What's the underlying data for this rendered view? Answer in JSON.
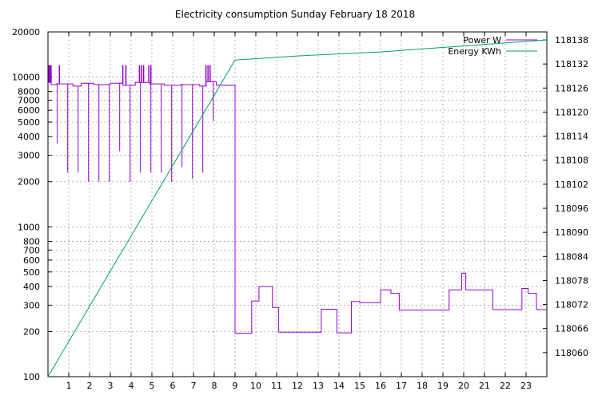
{
  "chart_data": {
    "type": "line",
    "title": "Electricity consumption Sunday February 18 2018",
    "xlabel": "",
    "ylabel": "",
    "grid": true,
    "legend_position": "top-right",
    "xlim": [
      0,
      24
    ],
    "x_ticks": [
      1,
      2,
      3,
      4,
      5,
      6,
      7,
      8,
      9,
      10,
      11,
      12,
      13,
      14,
      15,
      16,
      17,
      18,
      19,
      20,
      21,
      22,
      23
    ],
    "y_left": {
      "scale": "log",
      "lim": [
        100,
        20000
      ],
      "ticks": [
        100,
        200,
        300,
        400,
        500,
        600,
        700,
        800,
        1000,
        2000,
        3000,
        4000,
        5000,
        6000,
        7000,
        8000,
        10000,
        20000
      ]
    },
    "y_right": {
      "scale": "linear",
      "lim": [
        118054,
        118140
      ],
      "ticks": [
        118060,
        118066,
        118072,
        118078,
        118084,
        118090,
        118096,
        118102,
        118108,
        118114,
        118120,
        118126,
        118132,
        118138
      ]
    },
    "series": [
      {
        "name": "Power W",
        "axis": "left",
        "color": "#9400d3",
        "base_segments": [
          [
            0,
            0.15,
            9200
          ],
          [
            0.15,
            0.4,
            8900
          ],
          [
            0.4,
            0.55,
            9000
          ],
          [
            0.55,
            1.2,
            9000
          ],
          [
            1.2,
            1.6,
            8700
          ],
          [
            1.6,
            2.2,
            9100
          ],
          [
            2.2,
            3.0,
            8900
          ],
          [
            3.0,
            3.6,
            9100
          ],
          [
            3.6,
            4.2,
            8800
          ],
          [
            4.2,
            4.9,
            9200
          ],
          [
            4.9,
            5.6,
            9000
          ],
          [
            5.6,
            6.4,
            8800
          ],
          [
            6.4,
            7.3,
            8900
          ],
          [
            7.3,
            7.6,
            8700
          ],
          [
            7.6,
            8.1,
            9300
          ],
          [
            8.1,
            9.0,
            8800
          ],
          [
            9.0,
            9.8,
            195
          ],
          [
            9.8,
            10.15,
            320
          ],
          [
            10.15,
            10.8,
            400
          ],
          [
            10.8,
            11.1,
            290
          ],
          [
            11.1,
            13.15,
            198
          ],
          [
            13.15,
            13.9,
            282
          ],
          [
            13.9,
            14.6,
            196
          ],
          [
            14.6,
            15.0,
            318
          ],
          [
            15.0,
            16.0,
            312
          ],
          [
            16.0,
            16.5,
            380
          ],
          [
            16.5,
            16.9,
            360
          ],
          [
            16.9,
            19.3,
            278
          ],
          [
            19.3,
            19.9,
            380
          ],
          [
            19.9,
            20.1,
            490
          ],
          [
            20.1,
            21.4,
            380
          ],
          [
            21.4,
            22.8,
            280
          ],
          [
            22.8,
            23.1,
            388
          ],
          [
            23.1,
            23.5,
            360
          ],
          [
            23.5,
            24,
            280
          ]
        ],
        "dips": [
          [
            0.45,
            3600
          ],
          [
            0.95,
            2300
          ],
          [
            1.45,
            2300
          ],
          [
            1.95,
            2000
          ],
          [
            2.45,
            2000
          ],
          [
            2.95,
            2000
          ],
          [
            3.45,
            3200
          ],
          [
            3.95,
            2000
          ],
          [
            4.45,
            2300
          ],
          [
            4.95,
            2300
          ],
          [
            5.45,
            2300
          ],
          [
            5.95,
            2000
          ],
          [
            6.45,
            2500
          ],
          [
            6.95,
            2100
          ],
          [
            7.45,
            2300
          ],
          [
            7.95,
            5100
          ],
          [
            9.0,
            2500
          ]
        ],
        "spikes": [
          [
            0.05,
            12000
          ],
          [
            0.1,
            12000
          ],
          [
            0.15,
            12000
          ],
          [
            0.55,
            12000
          ],
          [
            3.6,
            12000
          ],
          [
            3.75,
            12000
          ],
          [
            4.4,
            12000
          ],
          [
            4.5,
            12000
          ],
          [
            4.6,
            12000
          ],
          [
            4.85,
            12000
          ],
          [
            4.95,
            12000
          ],
          [
            7.6,
            12000
          ],
          [
            7.7,
            12000
          ],
          [
            7.8,
            12000
          ]
        ]
      },
      {
        "name": "Energy KWh",
        "axis": "right",
        "color": "#009e73",
        "x": [
          0,
          9.0,
          12,
          16,
          20,
          24
        ],
        "values": [
          118054,
          118133,
          118134,
          118135,
          118136.5,
          118138
        ]
      }
    ]
  }
}
